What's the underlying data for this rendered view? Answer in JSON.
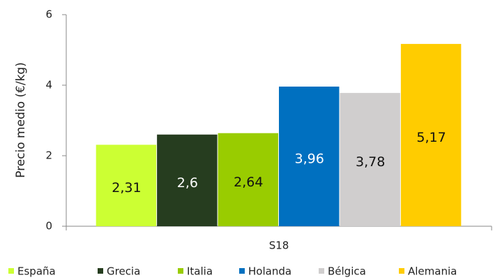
{
  "chart_data": {
    "type": "bar",
    "y_label": "Precio medio (€/kg)",
    "categories": [
      "S18"
    ],
    "series": [
      {
        "name": "España",
        "color": "#ccff33",
        "values": [
          2.31
        ],
        "value_labels": [
          "2,31"
        ]
      },
      {
        "name": "Grecia",
        "color": "#263d1f",
        "values": [
          2.6
        ],
        "value_labels": [
          "2,6"
        ]
      },
      {
        "name": "Italia",
        "color": "#99cc00",
        "values": [
          2.64
        ],
        "value_labels": [
          "2,64"
        ]
      },
      {
        "name": "Holanda",
        "color": "#0070c0",
        "values": [
          3.96
        ],
        "value_labels": [
          "3,96"
        ]
      },
      {
        "name": "Bélgica",
        "color": "#d0cece",
        "values": [
          3.78
        ],
        "value_labels": [
          "3,78"
        ]
      },
      {
        "name": "Alemania",
        "color": "#ffcc00",
        "values": [
          5.17
        ],
        "value_labels": [
          "5,17"
        ]
      }
    ],
    "ylim": [
      0,
      6
    ],
    "yticks": [
      0,
      2,
      4,
      6
    ],
    "legend": "bottom"
  }
}
